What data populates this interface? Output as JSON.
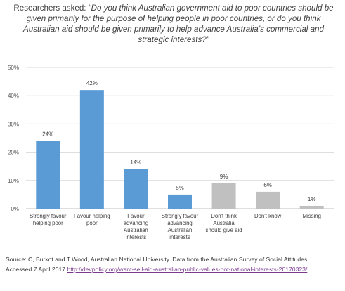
{
  "header": {
    "lead": "Researchers asked: ",
    "question": "“Do you think Australian government aid to poor countries should be given primarily for the purpose of helping people in poor countries, or do you think Australian aid should be given primarily to help advance Australia’s commercial and strategic interests?”"
  },
  "chart_data": {
    "type": "bar",
    "categories": [
      [
        "Strongly favour",
        "helping poor"
      ],
      [
        "Favour helping",
        "poor"
      ],
      [
        "Favour",
        "advancing",
        "Australian",
        "interests"
      ],
      [
        "Strongly favour",
        "advancing",
        "Australian",
        "interests"
      ],
      [
        "Don't think",
        "Australia",
        "should give aid"
      ],
      [
        "Don't know"
      ],
      [
        "Missing"
      ]
    ],
    "values": [
      24,
      42,
      14,
      5,
      9,
      6,
      1
    ],
    "data_labels": [
      "24%",
      "42%",
      "14%",
      "5%",
      "9%",
      "6%",
      "1%"
    ],
    "bar_colors": [
      "#5b9bd5",
      "#5b9bd5",
      "#5b9bd5",
      "#5b9bd5",
      "#c0c0c0",
      "#c0c0c0",
      "#c0c0c0"
    ],
    "ylim": [
      0,
      50
    ],
    "yticks": [
      "0%",
      "10%",
      "20%",
      "30%",
      "40%",
      "50%"
    ],
    "grid": true,
    "legend": "none"
  },
  "source": {
    "line1": "Source: C, Burkot and T Wood, Australian National University.  Data from the Australian Survey of Social Attitudes.",
    "line2_prefix": "Accessed 7 April 2017 ",
    "link": "http://devpolicy.org/want-sell-aid-australian-public-values-not-national-interests-20170323/"
  }
}
